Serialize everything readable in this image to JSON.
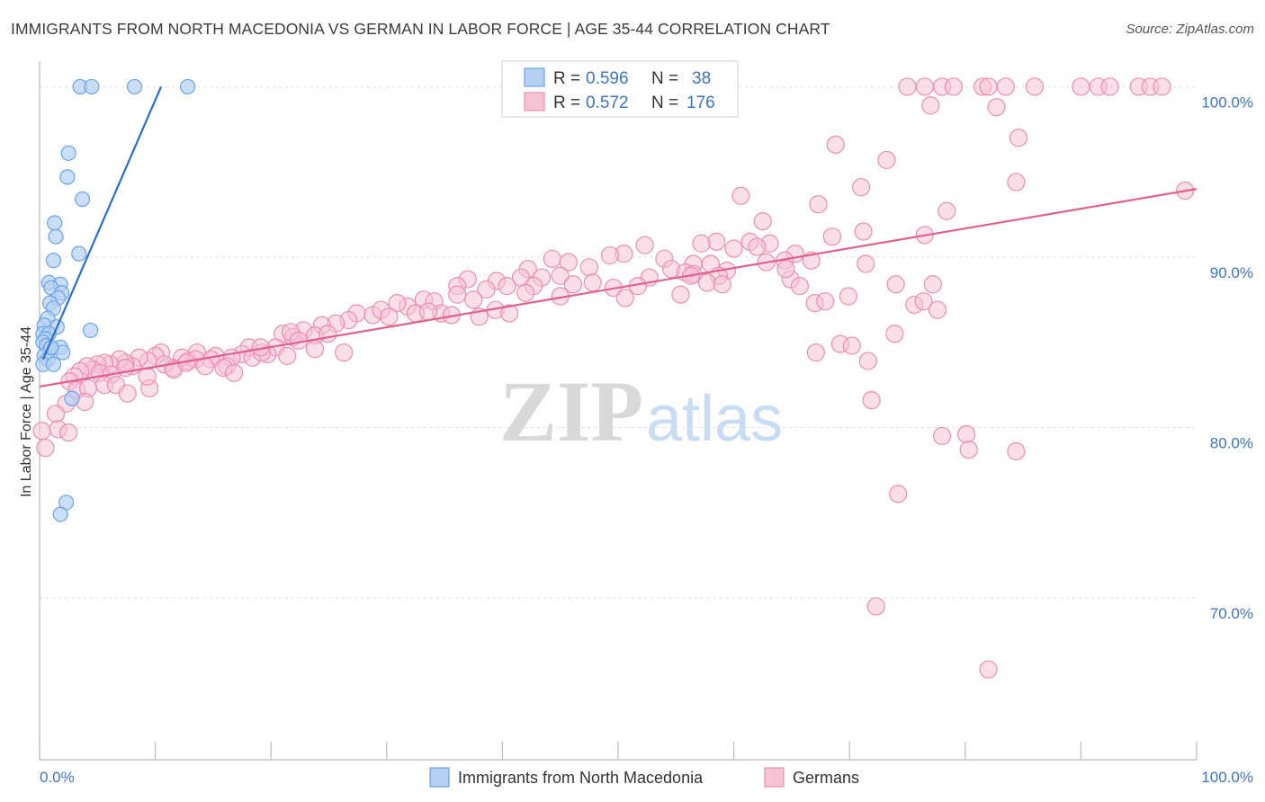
{
  "title": "IMMIGRANTS FROM NORTH MACEDONIA VS GERMAN IN LABOR FORCE | AGE 35-44 CORRELATION CHART",
  "source": "Source: ZipAtlas.com",
  "watermark": {
    "zip": "ZIP",
    "atlas": "atlas"
  },
  "colors": {
    "blue": "#6aa3e8",
    "blue_fill": "#b5d0f3",
    "blue_line": "#2a6fcf",
    "pink": "#eb8fb1",
    "pink_fill": "#f6c3d5",
    "pink_line": "#e0608f",
    "axis_text": "#3f73c4"
  },
  "legend": {
    "r_label": "R =",
    "n_label": "N =",
    "entries": [
      {
        "r": "0.596",
        "n": "38"
      },
      {
        "r": "0.572",
        "n": "176"
      }
    ]
  },
  "chart_data": {
    "type": "scatter",
    "ylabel": "In Labor Force | Age 35-44",
    "xlabel": "",
    "xlim": [
      0,
      100
    ],
    "ylim": [
      60.5,
      101.5
    ],
    "x_ticks": [
      "0.0%",
      "100.0%"
    ],
    "y_ticks": [
      {
        "v": 70,
        "label": "70.0%"
      },
      {
        "v": 80,
        "label": "80.0%"
      },
      {
        "v": 90,
        "label": "90.0%"
      },
      {
        "v": 100,
        "label": "100.0%"
      }
    ],
    "grid": true,
    "series": [
      {
        "name": "Immigrants from North Macedonia",
        "color": "#6aa3e8",
        "trend": [
          [
            0.3,
            84.0
          ],
          [
            10.5,
            100.0
          ]
        ],
        "points": [
          [
            3.5,
            100
          ],
          [
            4.5,
            100
          ],
          [
            8.2,
            100
          ],
          [
            12.8,
            100
          ],
          [
            2.5,
            96.1
          ],
          [
            2.4,
            94.7
          ],
          [
            3.7,
            93.4
          ],
          [
            1.3,
            92.0
          ],
          [
            1.4,
            91.2
          ],
          [
            3.4,
            90.2
          ],
          [
            1.2,
            89.8
          ],
          [
            0.8,
            88.5
          ],
          [
            1.8,
            88.4
          ],
          [
            1.0,
            88.2
          ],
          [
            1.9,
            87.9
          ],
          [
            1.6,
            87.6
          ],
          [
            0.9,
            87.3
          ],
          [
            1.2,
            87.0
          ],
          [
            0.7,
            86.4
          ],
          [
            0.4,
            86.0
          ],
          [
            1.5,
            85.9
          ],
          [
            4.4,
            85.7
          ],
          [
            0.3,
            85.5
          ],
          [
            0.8,
            85.5
          ],
          [
            0.5,
            85.2
          ],
          [
            0.3,
            85.0
          ],
          [
            0.6,
            84.8
          ],
          [
            1.8,
            84.7
          ],
          [
            0.9,
            84.6
          ],
          [
            2.0,
            84.4
          ],
          [
            0.4,
            84.2
          ],
          [
            0.7,
            84.0
          ],
          [
            0.3,
            83.7
          ],
          [
            1.2,
            83.7
          ],
          [
            2.8,
            81.7
          ],
          [
            2.3,
            75.6
          ],
          [
            1.8,
            74.9
          ],
          [
            1.0,
            84.7
          ]
        ]
      },
      {
        "name": "Germans",
        "color": "#eb8fb1",
        "trend": [
          [
            0,
            82.4
          ],
          [
            100,
            94.0
          ]
        ],
        "points": [
          [
            75,
            100
          ],
          [
            76.5,
            100
          ],
          [
            78,
            100
          ],
          [
            79,
            100
          ],
          [
            81.5,
            100
          ],
          [
            82,
            100
          ],
          [
            83.5,
            100
          ],
          [
            86,
            100
          ],
          [
            90,
            100
          ],
          [
            91.5,
            100
          ],
          [
            92.5,
            100
          ],
          [
            95,
            100
          ],
          [
            96,
            100
          ],
          [
            97,
            100
          ],
          [
            77,
            98.9
          ],
          [
            82.7,
            98.8
          ],
          [
            84.6,
            97.0
          ],
          [
            68.8,
            96.6
          ],
          [
            73.2,
            95.7
          ],
          [
            84.4,
            94.4
          ],
          [
            71,
            94.1
          ],
          [
            60.6,
            93.6
          ],
          [
            67.3,
            93.1
          ],
          [
            78.4,
            92.7
          ],
          [
            99,
            93.9
          ],
          [
            62.5,
            92.1
          ],
          [
            71.2,
            91.5
          ],
          [
            76.5,
            91.3
          ],
          [
            68.5,
            91.2
          ],
          [
            58.5,
            90.9
          ],
          [
            61.4,
            90.9
          ],
          [
            63.1,
            90.8
          ],
          [
            62.0,
            90.6
          ],
          [
            57.2,
            90.8
          ],
          [
            52.3,
            90.7
          ],
          [
            60.0,
            90.5
          ],
          [
            65.3,
            90.2
          ],
          [
            50.5,
            90.2
          ],
          [
            49.3,
            90.1
          ],
          [
            44.3,
            89.9
          ],
          [
            54.0,
            89.9
          ],
          [
            56.5,
            89.6
          ],
          [
            58.0,
            89.6
          ],
          [
            62.8,
            89.7
          ],
          [
            64.4,
            89.8
          ],
          [
            45.7,
            89.7
          ],
          [
            47.5,
            89.4
          ],
          [
            54.6,
            89.3
          ],
          [
            55.8,
            89.1
          ],
          [
            56.5,
            89.0
          ],
          [
            59.4,
            89.2
          ],
          [
            42.2,
            89.3
          ],
          [
            43.4,
            88.8
          ],
          [
            45.0,
            88.9
          ],
          [
            52.7,
            88.8
          ],
          [
            56.3,
            88.9
          ],
          [
            64.9,
            88.7
          ],
          [
            66.7,
            89.8
          ],
          [
            58.7,
            88.9
          ],
          [
            51.7,
            88.3
          ],
          [
            37.0,
            88.7
          ],
          [
            39.5,
            88.6
          ],
          [
            41.6,
            88.8
          ],
          [
            46.1,
            88.4
          ],
          [
            47.8,
            88.5
          ],
          [
            49.6,
            88.2
          ],
          [
            42.7,
            88.3
          ],
          [
            40.4,
            88.3
          ],
          [
            42.0,
            87.9
          ],
          [
            36.1,
            88.3
          ],
          [
            38.6,
            88.1
          ],
          [
            45.0,
            87.7
          ],
          [
            50.6,
            87.6
          ],
          [
            55.4,
            87.8
          ],
          [
            57.7,
            88.5
          ],
          [
            59.0,
            88.4
          ],
          [
            64.5,
            89.3
          ],
          [
            65.7,
            88.3
          ],
          [
            74.0,
            88.4
          ],
          [
            36.1,
            87.8
          ],
          [
            37.5,
            87.5
          ],
          [
            33.2,
            87.5
          ],
          [
            34.1,
            87.4
          ],
          [
            31.8,
            87.1
          ],
          [
            30.9,
            87.3
          ],
          [
            28.8,
            86.6
          ],
          [
            29.5,
            86.9
          ],
          [
            27.4,
            86.7
          ],
          [
            26.7,
            86.3
          ],
          [
            25.6,
            86.1
          ],
          [
            24.4,
            86.0
          ],
          [
            22.8,
            85.7
          ],
          [
            23.8,
            85.4
          ],
          [
            24.9,
            85.5
          ],
          [
            21.0,
            85.5
          ],
          [
            21.9,
            85.3
          ],
          [
            30.2,
            86.5
          ],
          [
            32.5,
            86.7
          ],
          [
            34.7,
            86.7
          ],
          [
            38.0,
            86.5
          ],
          [
            39.4,
            86.9
          ],
          [
            40.6,
            86.7
          ],
          [
            33.6,
            86.8
          ],
          [
            35.6,
            86.6
          ],
          [
            21.7,
            85.6
          ],
          [
            20.4,
            84.7
          ],
          [
            22.4,
            85.1
          ],
          [
            19.7,
            84.3
          ],
          [
            18.1,
            84.7
          ],
          [
            17.5,
            84.3
          ],
          [
            16.6,
            84.1
          ],
          [
            15.2,
            84.2
          ],
          [
            14.8,
            84.0
          ],
          [
            13.6,
            84.4
          ],
          [
            12.8,
            83.9
          ],
          [
            12.3,
            84.1
          ],
          [
            11.5,
            83.5
          ],
          [
            10.5,
            84.4
          ],
          [
            10.0,
            84.2
          ],
          [
            9.4,
            83.9
          ],
          [
            8.6,
            84.1
          ],
          [
            8.0,
            83.6
          ],
          [
            7.4,
            83.8
          ],
          [
            6.9,
            84.0
          ],
          [
            6.1,
            83.7
          ],
          [
            5.6,
            83.8
          ],
          [
            5.0,
            83.7
          ],
          [
            4.6,
            83.4
          ],
          [
            4.1,
            83.6
          ],
          [
            3.5,
            83.3
          ],
          [
            3.0,
            83.0
          ],
          [
            2.6,
            82.7
          ],
          [
            7.4,
            83.5
          ],
          [
            10.8,
            83.7
          ],
          [
            13.5,
            84.0
          ],
          [
            16.2,
            83.6
          ],
          [
            18.4,
            84.1
          ],
          [
            19.2,
            84.4
          ],
          [
            21.4,
            84.2
          ],
          [
            23.8,
            84.6
          ],
          [
            26.3,
            84.4
          ],
          [
            11.6,
            83.4
          ],
          [
            12.7,
            83.8
          ],
          [
            14.3,
            83.6
          ],
          [
            15.9,
            83.5
          ],
          [
            16.8,
            83.2
          ],
          [
            19.1,
            84.7
          ],
          [
            5.2,
            83.2
          ],
          [
            6.2,
            83.1
          ],
          [
            3.2,
            82.2
          ],
          [
            4.2,
            82.3
          ],
          [
            5.6,
            82.5
          ],
          [
            6.6,
            82.5
          ],
          [
            9.5,
            82.3
          ],
          [
            9.3,
            83.0
          ],
          [
            7.6,
            82.0
          ],
          [
            3.9,
            81.5
          ],
          [
            2.3,
            81.4
          ],
          [
            1.4,
            80.8
          ],
          [
            0.2,
            79.8
          ],
          [
            1.6,
            79.9
          ],
          [
            2.5,
            79.7
          ],
          [
            0.5,
            78.8
          ],
          [
            67.0,
            87.3
          ],
          [
            67.9,
            87.4
          ],
          [
            69.9,
            87.7
          ],
          [
            71.4,
            89.6
          ],
          [
            75.6,
            87.2
          ],
          [
            76.4,
            87.4
          ],
          [
            77.6,
            86.9
          ],
          [
            77.2,
            88.4
          ],
          [
            67.1,
            84.4
          ],
          [
            69.2,
            84.9
          ],
          [
            70.2,
            84.8
          ],
          [
            71.6,
            83.9
          ],
          [
            71.9,
            81.6
          ],
          [
            73.9,
            85.5
          ],
          [
            78.0,
            79.5
          ],
          [
            80.1,
            79.6
          ],
          [
            80.3,
            78.7
          ],
          [
            84.4,
            78.6
          ],
          [
            74.2,
            76.1
          ],
          [
            72.3,
            69.5
          ],
          [
            82.0,
            65.8
          ]
        ]
      }
    ]
  }
}
